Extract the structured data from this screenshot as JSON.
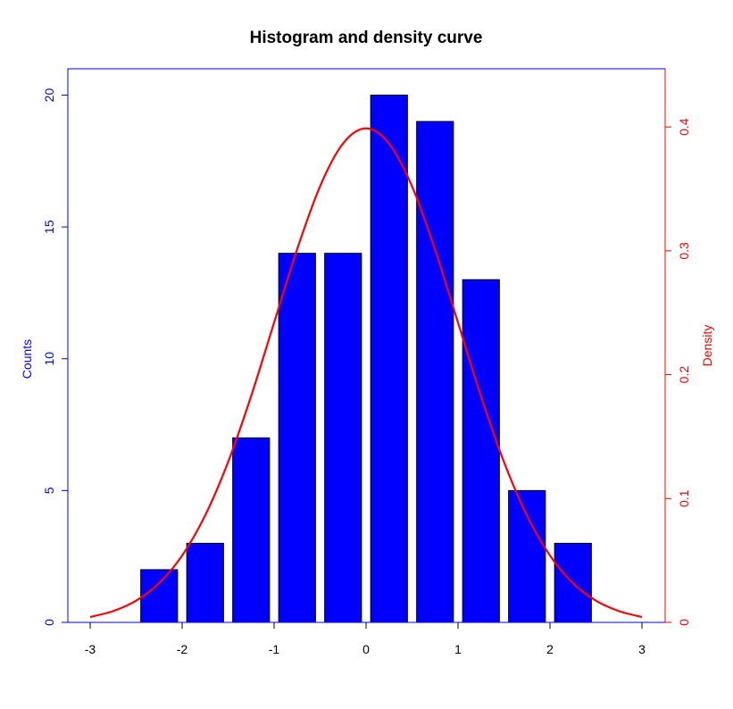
{
  "chart_data": {
    "type": "bar",
    "title": "Histogram and density curve",
    "xlabel": "",
    "x_ticks": [
      "-3",
      "-2",
      "-1",
      "0",
      "1",
      "2",
      "3"
    ],
    "xlim": [
      -3,
      3
    ],
    "y_left": {
      "label": "Counts",
      "ticks": [
        "0",
        "5",
        "10",
        "15",
        "20"
      ],
      "ylim": [
        0,
        21
      ],
      "color": "#0000ff"
    },
    "y_right": {
      "label": "Density",
      "ticks": [
        "0",
        "0.1",
        "0.2",
        "0.3",
        "0.4"
      ],
      "ylim": [
        0,
        0.447
      ],
      "color": "#ff0000"
    },
    "histogram": {
      "name": "Counts",
      "color": "#0000ff",
      "bins": [
        {
          "x0": -2.5,
          "x1": -2.0,
          "count": 2
        },
        {
          "x0": -2.0,
          "x1": -1.5,
          "count": 3
        },
        {
          "x0": -1.5,
          "x1": -1.0,
          "count": 7
        },
        {
          "x0": -1.0,
          "x1": -0.5,
          "count": 14
        },
        {
          "x0": -0.5,
          "x1": 0.0,
          "count": 14
        },
        {
          "x0": 0.0,
          "x1": 0.5,
          "count": 20
        },
        {
          "x0": 0.5,
          "x1": 1.0,
          "count": 19
        },
        {
          "x0": 1.0,
          "x1": 1.5,
          "count": 13
        },
        {
          "x0": 1.5,
          "x1": 2.0,
          "count": 5
        },
        {
          "x0": 2.0,
          "x1": 2.5,
          "count": 3
        }
      ]
    },
    "density": {
      "name": "Density",
      "color": "#ff0000",
      "distribution": "standard normal",
      "x": [
        -3,
        -2.75,
        -2.5,
        -2.25,
        -2,
        -1.75,
        -1.5,
        -1.25,
        -1,
        -0.75,
        -0.5,
        -0.25,
        0,
        0.25,
        0.5,
        0.75,
        1,
        1.25,
        1.5,
        1.75,
        2,
        2.25,
        2.5,
        2.75,
        3
      ],
      "y": [
        0.0044,
        0.0091,
        0.0175,
        0.0317,
        0.054,
        0.0863,
        0.1295,
        0.1826,
        0.242,
        0.3011,
        0.3521,
        0.3867,
        0.3989,
        0.3867,
        0.3521,
        0.3011,
        0.242,
        0.1826,
        0.1295,
        0.0863,
        0.054,
        0.0317,
        0.0175,
        0.0091,
        0.0044
      ]
    }
  }
}
